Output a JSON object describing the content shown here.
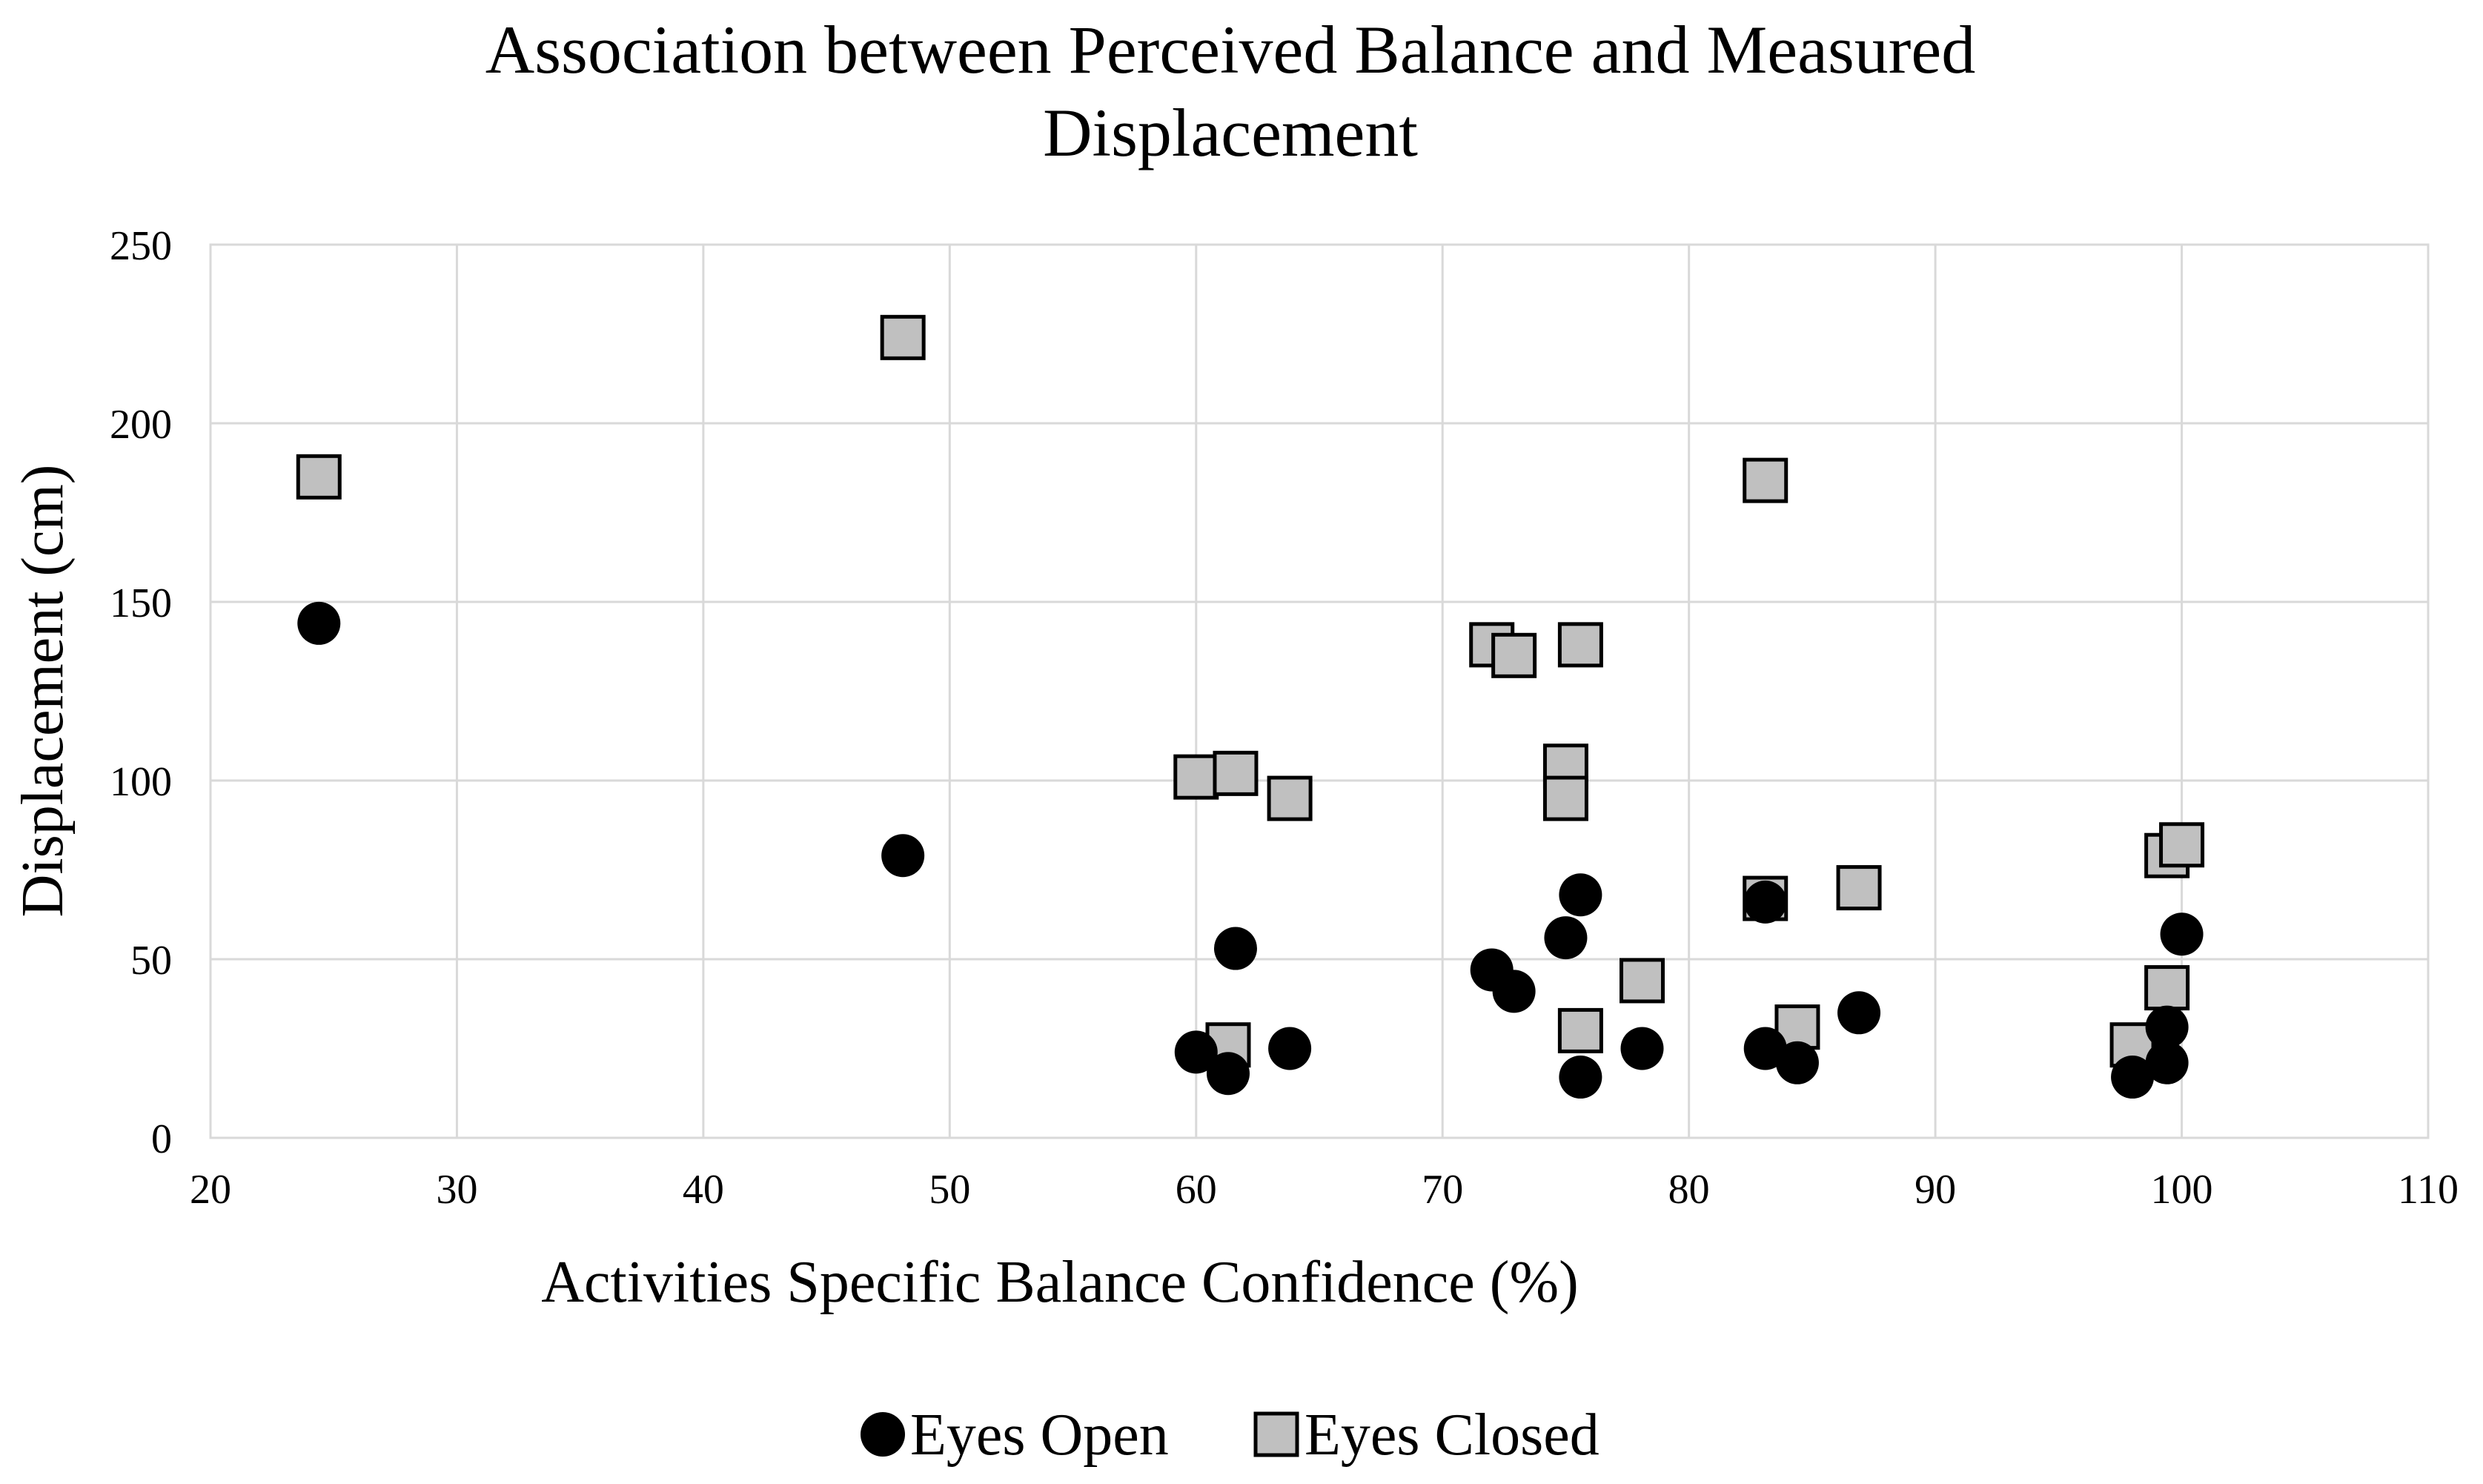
{
  "chart_data": {
    "type": "scatter",
    "title": [
      "Association between Perceived Balance and Measured",
      "Displacement"
    ],
    "xlabel": "Activities Specific Balance Confidence (%)",
    "ylabel": "Displacement (cm)",
    "xlim": [
      20,
      110
    ],
    "ylim": [
      0,
      250
    ],
    "xticks": [
      20,
      30,
      40,
      50,
      60,
      70,
      80,
      90,
      100,
      110
    ],
    "yticks": [
      0,
      50,
      100,
      150,
      200,
      250
    ],
    "grid": true,
    "legend_position": "bottom",
    "series": [
      {
        "name": "Eyes Open",
        "marker": "circle",
        "color": "#000000",
        "points": [
          [
            24.4,
            144
          ],
          [
            48.1,
            79
          ],
          [
            60,
            24
          ],
          [
            61.3,
            18
          ],
          [
            61.6,
            53
          ],
          [
            63.8,
            25
          ],
          [
            72,
            47
          ],
          [
            72.9,
            41
          ],
          [
            75,
            56
          ],
          [
            75.6,
            68
          ],
          [
            75.6,
            17
          ],
          [
            78.1,
            25
          ],
          [
            83.1,
            25
          ],
          [
            84.4,
            21
          ],
          [
            86.9,
            35
          ],
          [
            98,
            17
          ],
          [
            99.4,
            21
          ],
          [
            99.4,
            31
          ],
          [
            100,
            57
          ],
          [
            83.1,
            66
          ]
        ]
      },
      {
        "name": "Eyes Closed",
        "marker": "square",
        "color": "#c0c0c0",
        "points": [
          [
            24.4,
            185
          ],
          [
            48.1,
            224
          ],
          [
            60,
            101
          ],
          [
            61.6,
            102
          ],
          [
            63.8,
            95
          ],
          [
            61.3,
            26
          ],
          [
            72,
            138
          ],
          [
            72.9,
            135
          ],
          [
            75.6,
            138
          ],
          [
            75,
            104
          ],
          [
            75,
            95
          ],
          [
            78.1,
            44
          ],
          [
            75.6,
            30
          ],
          [
            83.1,
            184
          ],
          [
            83.1,
            67
          ],
          [
            86.9,
            70
          ],
          [
            84.4,
            31
          ],
          [
            98,
            26
          ],
          [
            99.4,
            42
          ],
          [
            99.4,
            79
          ],
          [
            100,
            82
          ]
        ]
      }
    ]
  }
}
